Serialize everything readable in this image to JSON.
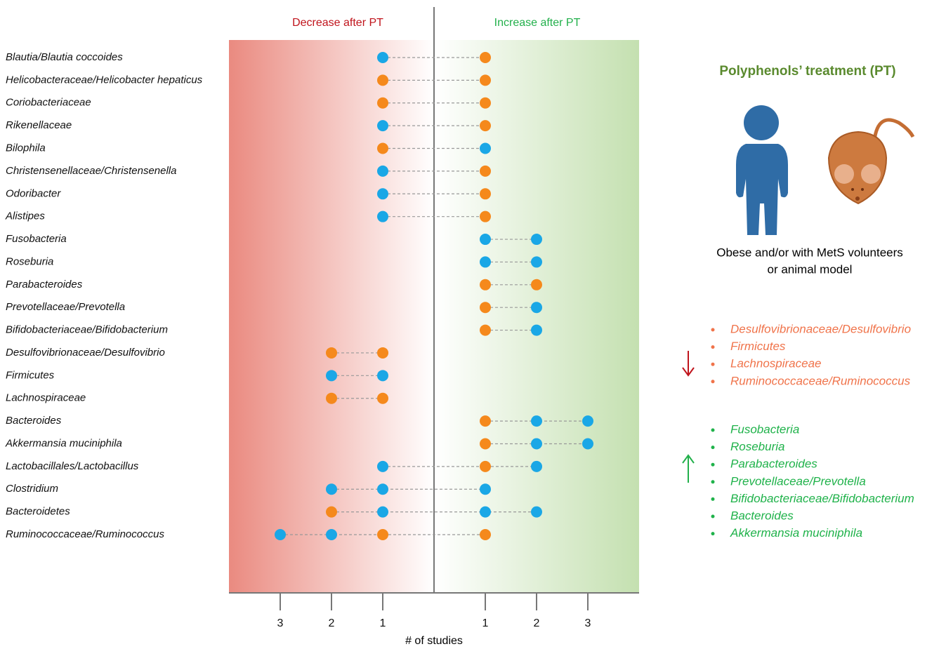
{
  "chart_data": {
    "type": "dot",
    "header_left": "Decrease after PT",
    "header_right": "Increase after PT",
    "header_left_color": "#c0141c",
    "header_right_color": "#22b04b",
    "xlabel": "# of studies",
    "categories": [
      "Blautia/Blautia coccoides",
      "Helicobacteraceae/Helicobacter hepaticus",
      "Coriobacteriaceae",
      "Rikenellaceae",
      "Bilophila",
      "Christensenellaceae/Christensenella",
      "Odoribacter",
      "Alistipes",
      "Fusobacteria",
      "Roseburia",
      "Parabacteroides",
      "Prevotellaceae/Prevotella",
      "Bifidobacteriaceae/Bifidobacterium",
      "Desulfovibrionaceae/Desulfovibrio",
      "Firmicutes",
      "Lachnospiraceae",
      "Bacteroides",
      "Akkermansia muciniphila",
      "Lactobacillales/Lactobacillus",
      "Clostridium",
      "Bacteroidetes",
      "Ruminococcaceae/Ruminococcus"
    ],
    "series": [
      {
        "color": "#1aa7e6",
        "values": [
          [
            -1
          ],
          [],
          [],
          [
            -1
          ],
          [
            1
          ],
          [
            -1
          ],
          [
            -1
          ],
          [
            -1
          ],
          [
            1,
            2
          ],
          [
            1,
            2
          ],
          [],
          [
            2
          ],
          [
            2
          ],
          [],
          [
            -2,
            -1
          ],
          [],
          [
            2,
            3
          ],
          [
            2,
            3
          ],
          [
            -1,
            2
          ],
          [
            -2,
            -1,
            1
          ],
          [
            -1,
            1,
            2
          ],
          [
            -3,
            -2
          ]
        ]
      },
      {
        "color": "#f5891c",
        "values": [
          [
            1
          ],
          [
            -1,
            1
          ],
          [
            -1,
            1
          ],
          [
            1
          ],
          [
            -1
          ],
          [
            1
          ],
          [
            1
          ],
          [
            1
          ],
          [],
          [],
          [
            1,
            2
          ],
          [
            1
          ],
          [
            1
          ],
          [
            -2,
            -1
          ],
          [],
          [
            -2,
            -1
          ],
          [
            1
          ],
          [
            1
          ],
          [
            1
          ],
          [],
          [
            -2
          ],
          [
            -1,
            1
          ]
        ]
      }
    ],
    "xlim": [
      -4,
      4
    ],
    "xticks": [
      {
        "value": -3,
        "label": "3"
      },
      {
        "value": -2,
        "label": "2"
      },
      {
        "value": -1,
        "label": "1"
      },
      {
        "value": 1,
        "label": "1"
      },
      {
        "value": 2,
        "label": "2"
      },
      {
        "value": 3,
        "label": "3"
      }
    ]
  },
  "panel": {
    "title": "Polyphenols’ treatment (PT)",
    "caption": [
      "Obese and/or with MetS volunteers",
      "or animal model"
    ],
    "decreased": [
      "Desulfovibrionaceae/Desulfovibrio",
      "Firmicutes",
      "Lachnospiraceae",
      "Ruminococcaceae/Ruminococcus"
    ],
    "increased": [
      "Fusobacteria",
      "Roseburia",
      "Parabacteroides",
      "Prevotellaceae/Prevotella",
      "Bifidobacteriaceae/Bifidobacterium",
      "Bacteroides",
      "Akkermansia muciniphila"
    ]
  }
}
